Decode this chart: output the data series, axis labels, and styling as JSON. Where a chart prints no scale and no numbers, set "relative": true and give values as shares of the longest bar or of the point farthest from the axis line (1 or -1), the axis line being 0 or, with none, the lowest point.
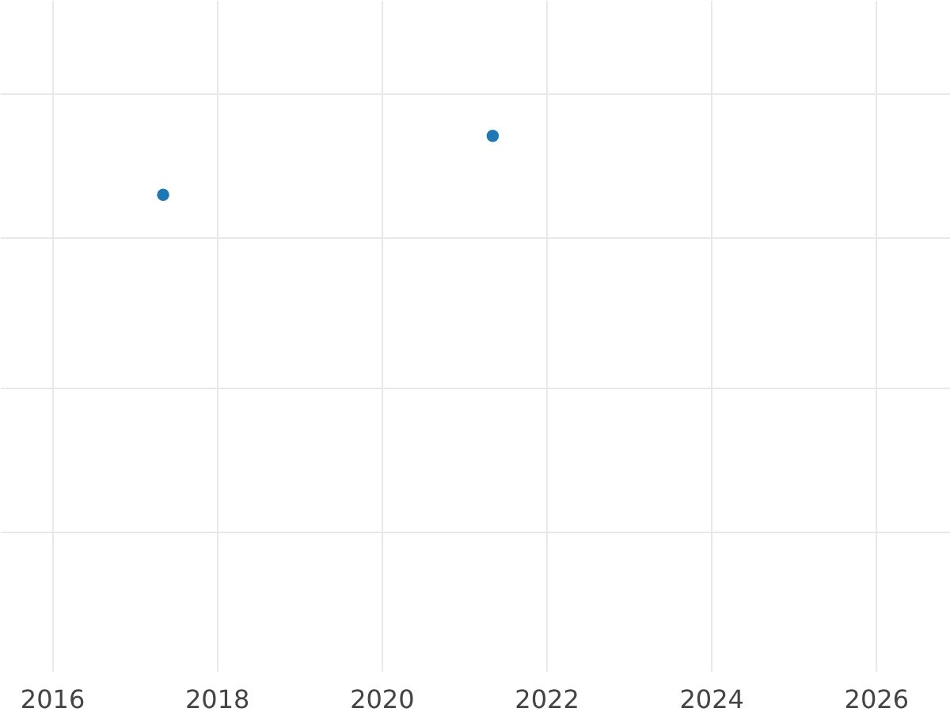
{
  "chart_data": {
    "type": "scatter",
    "relative": true,
    "x": [
      2017.35,
      2021.35
    ],
    "series": [
      {
        "color": "#1f77b4",
        "values": [
          0.89,
          1
        ]
      }
    ],
    "xlim": [
      2015.37,
      2026.9
    ],
    "xticks": [
      2016,
      2018,
      2020,
      2022,
      2024,
      2026
    ],
    "grid": true,
    "marker": "circle",
    "tick_labels": "x",
    "legend": false
  }
}
